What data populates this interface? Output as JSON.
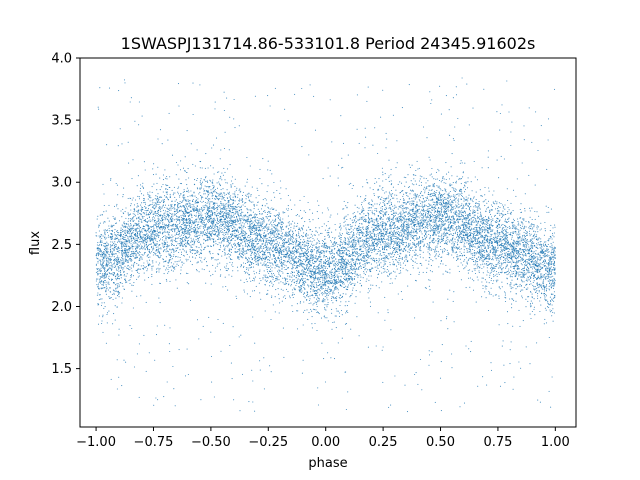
{
  "chart_data": {
    "type": "scatter",
    "title": "1SWASPJ131714.86-533101.8 Period 24345.91602s",
    "xlabel": "phase",
    "ylabel": "flux",
    "xlim": [
      -1.07,
      1.09
    ],
    "ylim": [
      1.03,
      4.0
    ],
    "grid": false,
    "legend": "none",
    "marker_color": "#1f77b4",
    "x_ticks": [
      -1.0,
      -0.75,
      -0.5,
      -0.25,
      0.0,
      0.25,
      0.5,
      0.75,
      1.0
    ],
    "x_tick_labels": [
      "−1.00",
      "−0.75",
      "−0.50",
      "−0.25",
      "0.00",
      "0.25",
      "0.50",
      "0.75",
      "1.00"
    ],
    "y_ticks": [
      1.5,
      2.0,
      2.5,
      3.0,
      3.5,
      4.0
    ],
    "y_tick_labels": [
      "1.5",
      "2.0",
      "2.5",
      "3.0",
      "3.5",
      "4.0"
    ],
    "series": [
      {
        "x_range": [
          -1.0,
          1.0
        ],
        "trend": {
          "x": [
            -1.0,
            -0.75,
            -0.5,
            -0.25,
            0.0,
            0.25,
            0.5,
            0.75,
            1.0
          ],
          "y": [
            2.33,
            2.62,
            2.72,
            2.5,
            2.28,
            2.6,
            2.72,
            2.5,
            2.3
          ]
        },
        "core_spread": 0.17,
        "outlier_range": [
          1.15,
          3.85
        ]
      }
    ]
  }
}
